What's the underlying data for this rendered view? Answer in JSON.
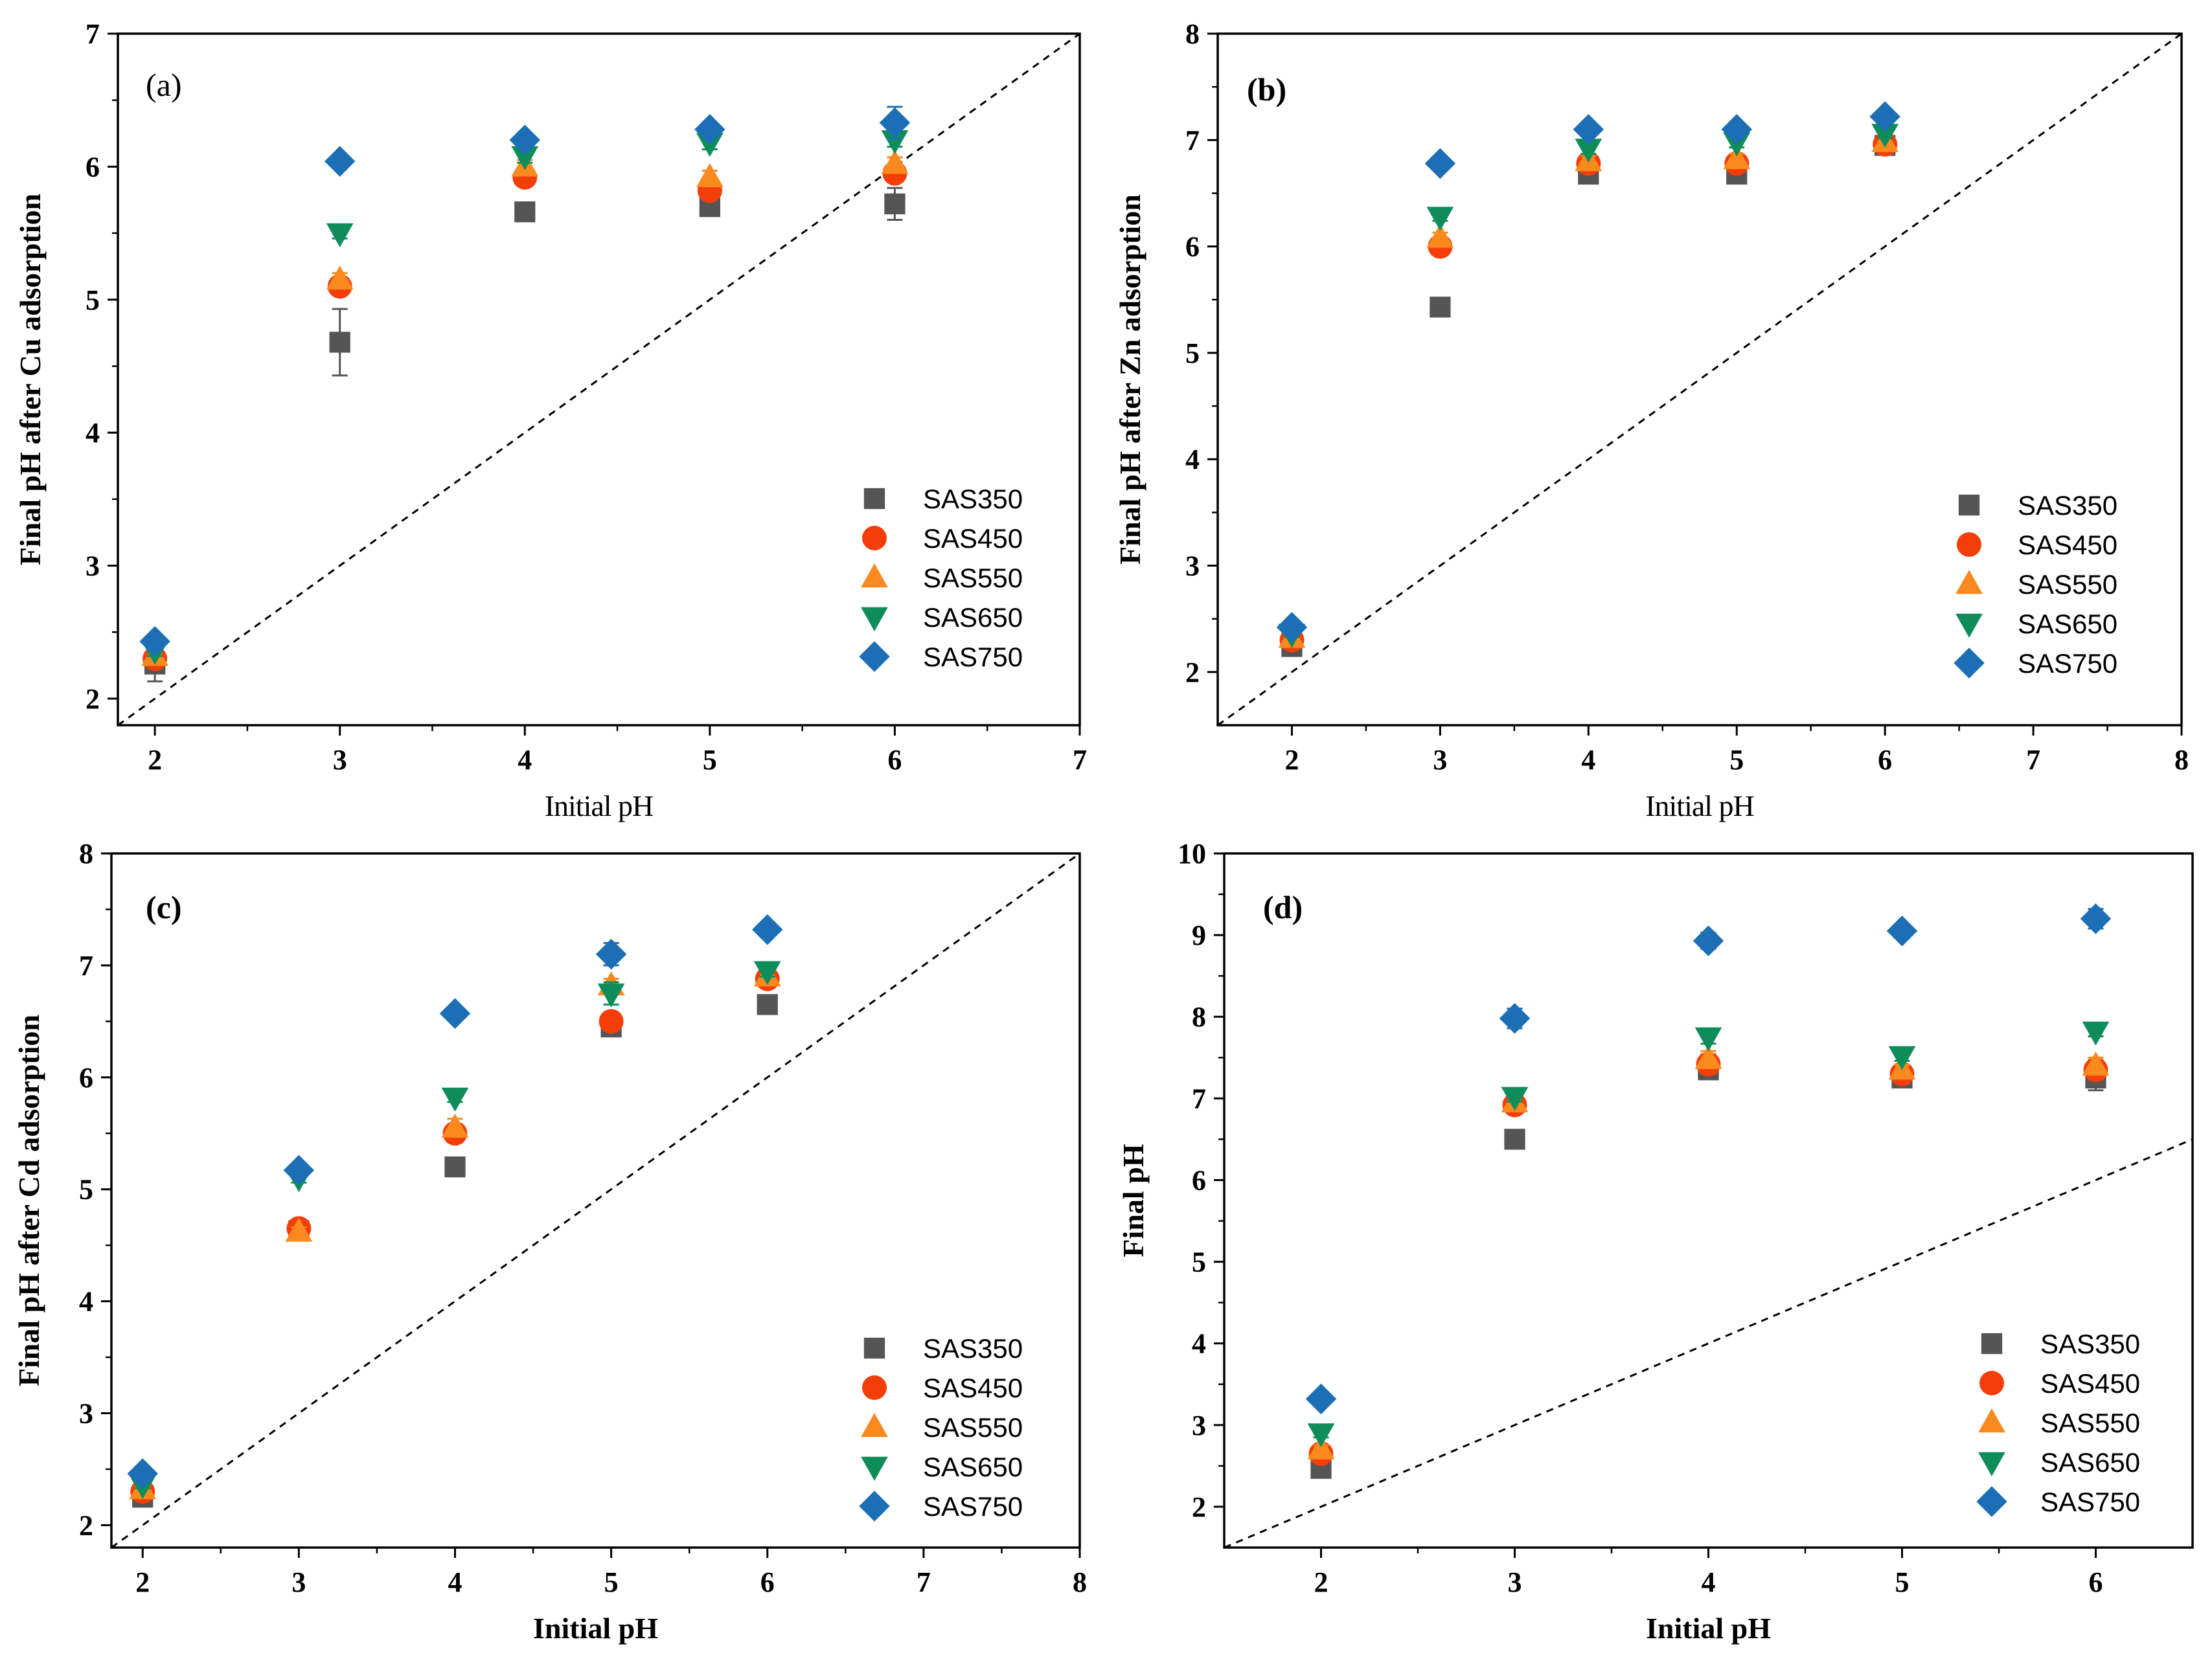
{
  "colors": {
    "SAS350": "#555555",
    "SAS450": "#f43e0a",
    "SAS550": "#fa8a1e",
    "SAS650": "#0e8d5a",
    "SAS750": "#1c6fb4"
  },
  "chart_data": [
    {
      "type": "scatter",
      "panel": "(a)",
      "panel_bold": false,
      "xlabel": "Initial pH",
      "xlabel_bold": false,
      "ylabel": "Final pH after Cu adsorption",
      "xlim": [
        1.8,
        7
      ],
      "ylim": [
        1.8,
        7
      ],
      "xticks": [
        2,
        3,
        4,
        5,
        6,
        7
      ],
      "yticks": [
        2,
        3,
        4,
        5,
        6,
        7
      ],
      "reference_line": "y = x (dashed)",
      "legend_position": "bottom-right",
      "x": [
        2,
        3,
        4,
        5,
        6
      ],
      "series": [
        {
          "name": "SAS350",
          "marker": "square",
          "values": [
            2.26,
            4.68,
            5.66,
            5.7,
            5.72
          ],
          "errors": [
            0.13,
            0.25,
            0.05,
            0.05,
            0.12
          ]
        },
        {
          "name": "SAS450",
          "marker": "circle",
          "values": [
            2.3,
            5.1,
            5.92,
            5.82,
            5.95
          ],
          "errors": [
            0.04,
            0.05,
            0.05,
            0.05,
            0.05
          ]
        },
        {
          "name": "SAS550",
          "marker": "triangle-up",
          "values": [
            2.32,
            5.15,
            6.0,
            5.92,
            6.02
          ],
          "errors": [
            0.04,
            0.05,
            0.05,
            0.05,
            0.05
          ]
        },
        {
          "name": "SAS650",
          "marker": "triangle-down",
          "values": [
            2.36,
            5.5,
            6.08,
            6.18,
            6.2
          ],
          "errors": [
            0.04,
            0.04,
            0.05,
            0.05,
            0.05
          ]
        },
        {
          "name": "SAS750",
          "marker": "diamond",
          "values": [
            2.43,
            6.04,
            6.2,
            6.28,
            6.33
          ],
          "errors": [
            0.03,
            0.03,
            0.05,
            0.05,
            0.12
          ]
        }
      ]
    },
    {
      "type": "scatter",
      "panel": "(b)",
      "panel_bold": true,
      "xlabel": "Initial pH",
      "xlabel_bold": false,
      "ylabel": "Final pH after Zn adsorption",
      "xlim": [
        1.5,
        8
      ],
      "ylim": [
        1.5,
        8
      ],
      "xticks": [
        2,
        3,
        4,
        5,
        6,
        7,
        8
      ],
      "yticks": [
        2,
        3,
        4,
        5,
        6,
        7,
        8
      ],
      "reference_line": "y = x (dashed)",
      "legend_position": "bottom-right",
      "x": [
        2,
        3,
        4,
        5,
        6
      ],
      "series": [
        {
          "name": "SAS350",
          "marker": "square",
          "values": [
            2.24,
            5.43,
            6.68,
            6.68,
            6.95
          ],
          "errors": [
            0.03,
            0.04,
            0.05,
            0.08,
            0.04
          ]
        },
        {
          "name": "SAS450",
          "marker": "circle",
          "values": [
            2.3,
            6.0,
            6.78,
            6.78,
            6.96
          ],
          "errors": [
            0.03,
            0.05,
            0.05,
            0.05,
            0.04
          ]
        },
        {
          "name": "SAS550",
          "marker": "triangle-up",
          "values": [
            2.32,
            6.08,
            6.8,
            6.82,
            6.98
          ],
          "errors": [
            0.03,
            0.05,
            0.05,
            0.05,
            0.04
          ]
        },
        {
          "name": "SAS650",
          "marker": "triangle-down",
          "values": [
            2.36,
            6.28,
            6.92,
            6.98,
            7.06
          ],
          "errors": [
            0.03,
            0.04,
            0.05,
            0.05,
            0.04
          ]
        },
        {
          "name": "SAS750",
          "marker": "diamond",
          "values": [
            2.42,
            6.78,
            7.1,
            7.1,
            7.22
          ],
          "errors": [
            0.03,
            0.03,
            0.04,
            0.04,
            0.04
          ]
        }
      ]
    },
    {
      "type": "scatter",
      "panel": "(c)",
      "panel_bold": true,
      "xlabel": "Initial pH",
      "xlabel_bold": true,
      "ylabel": "Final pH after Cd adsorption",
      "xlim": [
        1.8,
        8
      ],
      "ylim": [
        1.8,
        8
      ],
      "xticks": [
        2,
        3,
        4,
        5,
        6,
        7,
        8
      ],
      "yticks": [
        2,
        3,
        4,
        5,
        6,
        7,
        8
      ],
      "reference_line": "y = x (dashed)",
      "legend_position": "bottom-right",
      "x": [
        2,
        3,
        4,
        5,
        6
      ],
      "series": [
        {
          "name": "SAS350",
          "marker": "square",
          "values": [
            2.25,
            4.63,
            5.2,
            6.45,
            6.65
          ],
          "errors": [
            0.03,
            0.04,
            0.04,
            0.05,
            0.04
          ]
        },
        {
          "name": "SAS450",
          "marker": "circle",
          "values": [
            2.3,
            4.65,
            5.5,
            6.5,
            6.88
          ],
          "errors": [
            0.03,
            0.04,
            0.08,
            0.05,
            0.05
          ]
        },
        {
          "name": "SAS550",
          "marker": "triangle-up",
          "values": [
            2.32,
            4.62,
            5.55,
            6.82,
            6.9
          ],
          "errors": [
            0.03,
            0.04,
            0.08,
            0.06,
            0.05
          ]
        },
        {
          "name": "SAS650",
          "marker": "triangle-down",
          "values": [
            2.36,
            5.1,
            5.82,
            6.75,
            6.95
          ],
          "errors": [
            0.03,
            0.04,
            0.04,
            0.1,
            0.05
          ]
        },
        {
          "name": "SAS750",
          "marker": "diamond",
          "values": [
            2.46,
            5.17,
            6.57,
            7.1,
            7.32
          ],
          "errors": [
            0.03,
            0.04,
            0.05,
            0.1,
            0.05
          ]
        }
      ]
    },
    {
      "type": "scatter",
      "panel": "(d)",
      "panel_bold": true,
      "xlabel": "Initial pH",
      "xlabel_bold": true,
      "ylabel": "Final pH",
      "xlim": [
        1.5,
        6.5
      ],
      "ylim": [
        1.5,
        10
      ],
      "xticks": [
        2,
        3,
        4,
        5,
        6
      ],
      "yticks": [
        2,
        3,
        4,
        5,
        6,
        7,
        8,
        9,
        10
      ],
      "reference_line": "y = x (dashed)",
      "legend_position": "bottom-right",
      "x": [
        2,
        3,
        4,
        5,
        6
      ],
      "series": [
        {
          "name": "SAS350",
          "marker": "square",
          "values": [
            2.47,
            6.5,
            7.35,
            7.25,
            7.25
          ],
          "errors": [
            0.05,
            0.05,
            0.06,
            0.06,
            0.15
          ]
        },
        {
          "name": "SAS450",
          "marker": "circle",
          "values": [
            2.65,
            6.92,
            7.42,
            7.3,
            7.35
          ],
          "errors": [
            0.05,
            0.1,
            0.12,
            0.06,
            0.12
          ]
        },
        {
          "name": "SAS550",
          "marker": "triangle-up",
          "values": [
            2.7,
            6.95,
            7.48,
            7.35,
            7.4
          ],
          "errors": [
            0.05,
            0.1,
            0.1,
            0.06,
            0.1
          ]
        },
        {
          "name": "SAS650",
          "marker": "triangle-down",
          "values": [
            2.9,
            7.02,
            7.75,
            7.52,
            7.82
          ],
          "errors": [
            0.05,
            0.06,
            0.08,
            0.06,
            0.06
          ]
        },
        {
          "name": "SAS750",
          "marker": "diamond",
          "values": [
            3.32,
            7.98,
            8.93,
            9.05,
            9.2
          ],
          "errors": [
            0.05,
            0.12,
            0.1,
            0.08,
            0.12
          ]
        }
      ]
    }
  ]
}
